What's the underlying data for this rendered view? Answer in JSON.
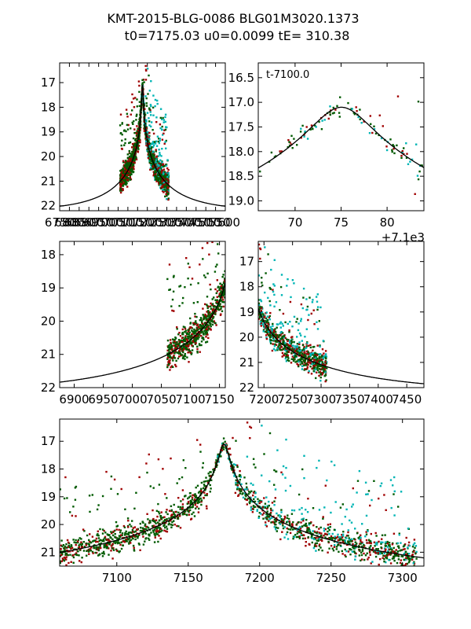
{
  "title": {
    "line1": "KMT-2015-BLG-0086 BLG01M3020.1373",
    "line2": "t0=7175.03 u0=0.0099 tE= 310.38"
  },
  "model": {
    "t0": 7175.03,
    "u0": 0.0099,
    "tE": 310.38,
    "mag_base": 22.2,
    "mag_peak": 17.1
  },
  "colors": {
    "red": "#a00000",
    "green": "#005a00",
    "cyan": "#00b5b5",
    "model": "#000000"
  },
  "chart_data": [
    {
      "name": "full-lightcurve",
      "type": "scatter",
      "xlim": [
        6750,
        7600
      ],
      "ylim": [
        22.2,
        16.2
      ],
      "xticks": [
        6750,
        6800,
        6850,
        6900,
        6950,
        7000,
        7050,
        7100,
        7150,
        7200,
        7250,
        7300,
        7350,
        7400,
        7450,
        7500,
        7550,
        7600
      ],
      "xtick_labels": [
        "6750",
        "6800",
        "6850",
        "6900",
        "6950",
        "7000",
        "7050",
        "7100",
        "7150",
        "7200",
        "7250",
        "7300",
        "7350",
        "7400",
        "7450",
        "7500",
        "7550",
        "7600"
      ],
      "yticks": [
        17,
        18,
        19,
        20,
        21,
        22
      ],
      "ytick_labels": [
        "17",
        "18",
        "19",
        "20",
        "21",
        "22"
      ],
      "annotation": ""
    },
    {
      "name": "peak-zoom",
      "type": "scatter",
      "xlim": [
        7166,
        7184
      ],
      "ylim": [
        19.2,
        16.2
      ],
      "xticks": [
        7170,
        7175,
        7180
      ],
      "xtick_labels": [
        "70",
        "75",
        "80"
      ],
      "yticks": [
        16.5,
        17.0,
        17.5,
        18.0,
        18.5,
        19.0
      ],
      "ytick_labels": [
        "16.5",
        "17.0",
        "17.5",
        "18.0",
        "18.5",
        "19.0"
      ],
      "offset_label": "+7.1e3",
      "annotation": "t-7100.0"
    },
    {
      "name": "pre-peak",
      "type": "scatter",
      "xlim": [
        6875,
        7160
      ],
      "ylim": [
        22.0,
        17.6
      ],
      "xticks": [
        6900,
        6950,
        7000,
        7050,
        7100,
        7150
      ],
      "xtick_labels": [
        "6900",
        "6950",
        "7000",
        "7050",
        "7100",
        "7150"
      ],
      "yticks": [
        18,
        19,
        20,
        21,
        22
      ],
      "ytick_labels": [
        "18",
        "19",
        "20",
        "21",
        "22"
      ],
      "annotation": ""
    },
    {
      "name": "post-peak",
      "type": "scatter",
      "xlim": [
        7190,
        7480
      ],
      "ylim": [
        22.0,
        16.2
      ],
      "xticks": [
        7200,
        7250,
        7300,
        7350,
        7400,
        7450
      ],
      "xtick_labels": [
        "7200",
        "7250",
        "7300",
        "7350",
        "7400",
        "7450"
      ],
      "yticks": [
        17,
        18,
        19,
        20,
        21,
        22
      ],
      "ytick_labels": [
        "17",
        "18",
        "19",
        "20",
        "21",
        "22"
      ],
      "annotation": ""
    },
    {
      "name": "season",
      "type": "scatter",
      "xlim": [
        7060,
        7315
      ],
      "ylim": [
        21.5,
        16.2
      ],
      "xticks": [
        7100,
        7150,
        7200,
        7250,
        7300
      ],
      "xtick_labels": [
        "7100",
        "7150",
        "7200",
        "7250",
        "7300"
      ],
      "yticks": [
        17,
        18,
        19,
        20,
        21
      ],
      "ytick_labels": [
        "17",
        "18",
        "19",
        "20",
        "21"
      ],
      "annotation": ""
    }
  ]
}
